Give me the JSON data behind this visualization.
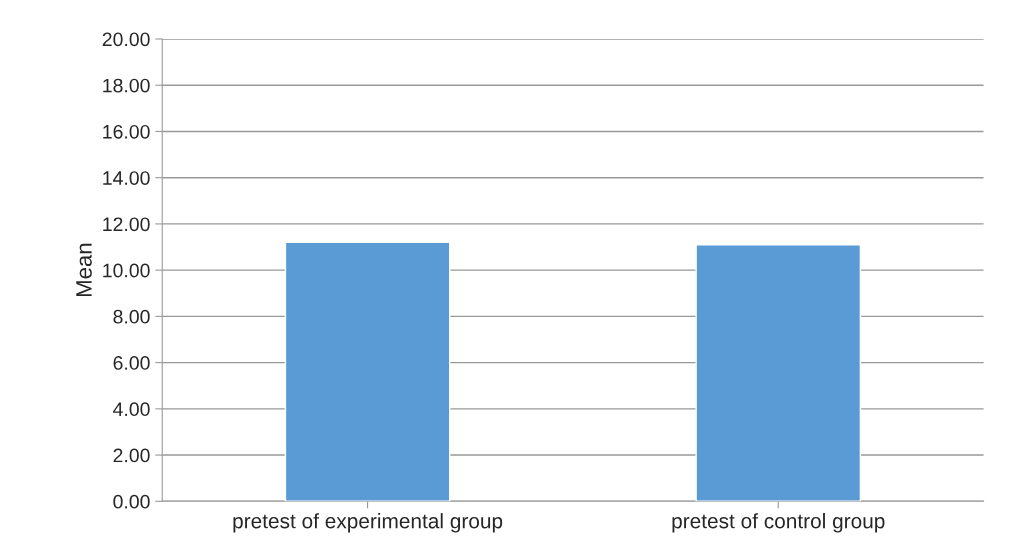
{
  "chart_data": {
    "type": "bar",
    "ylabel": "Mean",
    "categories": [
      "pretest of experimental group",
      "pretest of control group"
    ],
    "values": [
      11.2,
      11.1
    ],
    "color": "#5b9bd5",
    "ylim": [
      0,
      20
    ],
    "yticks": [
      {
        "value": 0,
        "label": "0.00"
      },
      {
        "value": 2,
        "label": "2.00"
      },
      {
        "value": 4,
        "label": "4.00"
      },
      {
        "value": 6,
        "label": "6.00"
      },
      {
        "value": 8,
        "label": "8.00"
      },
      {
        "value": 10,
        "label": "10.00"
      },
      {
        "value": 12,
        "label": "12.00"
      },
      {
        "value": 14,
        "label": "14.00"
      },
      {
        "value": 16,
        "label": "16.00"
      },
      {
        "value": 18,
        "label": "18.00"
      },
      {
        "value": 20,
        "label": "20.00"
      }
    ],
    "grid": "y"
  }
}
